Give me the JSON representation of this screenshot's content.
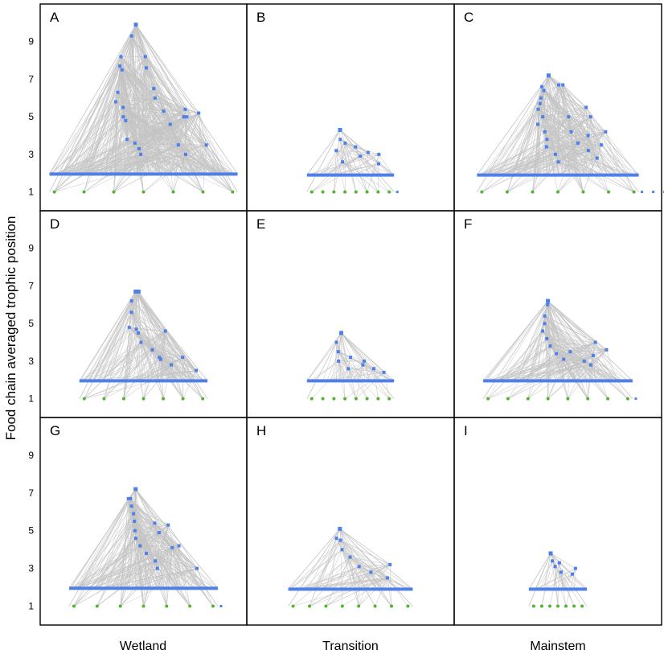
{
  "chart_data": {
    "type": "network",
    "ylabel": "Food chain averaged trophic position",
    "y_ticks": [
      "1",
      "3",
      "5",
      "7",
      "9"
    ],
    "ylim": [
      0,
      11
    ],
    "columns": [
      "Wetland",
      "Transition",
      "Mainstem"
    ],
    "colors": {
      "consumer": "#4f80e8",
      "basal": "#52b52b",
      "edge": "#c4c4c4",
      "border": "#000000"
    },
    "panels": [
      {
        "id": "A",
        "column": "Wetland",
        "row": 1,
        "max_tp": 9.9,
        "span": 0.91,
        "baseline_tp": 1.95,
        "n_basal": 7,
        "edge_count": 700,
        "extra_nodes": 0,
        "consumer_tps": [
          9.9,
          9.3,
          8.2,
          7.7,
          7.5,
          6.3,
          5.8,
          5.5,
          5.0,
          4.8,
          3.8,
          3.6,
          3.3,
          3.0,
          8.2,
          7.6,
          6.5,
          6.0,
          5.3,
          4.6,
          3.5,
          3.0,
          5.0,
          5.4,
          5.0,
          3.5,
          5.2
        ]
      },
      {
        "id": "B",
        "column": "Transition",
        "row": 1,
        "max_tp": 4.3,
        "span": 0.42,
        "baseline_tp": 1.9,
        "n_basal": 8,
        "edge_count": 90,
        "extra_nodes": 1,
        "consumer_tps": [
          4.3,
          3.8,
          3.2,
          2.6,
          3.6,
          3.4,
          2.9,
          3.1,
          2.5,
          3.0
        ]
      },
      {
        "id": "C",
        "column": "Mainstem",
        "row": 1,
        "max_tp": 7.2,
        "span": 0.78,
        "baseline_tp": 1.9,
        "n_basal": 7,
        "edge_count": 450,
        "extra_nodes": 4,
        "consumer_tps": [
          7.2,
          6.6,
          6.4,
          6.0,
          5.7,
          5.4,
          5.0,
          4.6,
          4.2,
          3.8,
          3.4,
          3.0,
          2.6,
          6.7,
          6.7,
          5.0,
          4.2,
          3.6,
          3.2,
          2.8,
          4.0,
          3.5,
          5.5,
          5.0,
          4.2
        ]
      },
      {
        "id": "D",
        "column": "Wetland",
        "row": 2,
        "max_tp": 6.7,
        "span": 0.62,
        "baseline_tp": 1.95,
        "n_basal": 7,
        "edge_count": 320,
        "extra_nodes": 0,
        "consumer_tps": [
          6.7,
          6.7,
          6.2,
          5.6,
          4.8,
          4.7,
          4.5,
          4.0,
          3.6,
          3.2,
          3.1,
          2.8,
          4.6,
          3.2,
          2.5
        ]
      },
      {
        "id": "E",
        "column": "Transition",
        "row": 2,
        "max_tp": 4.5,
        "span": 0.42,
        "baseline_tp": 1.95,
        "n_basal": 8,
        "edge_count": 100,
        "extra_nodes": 0,
        "consumer_tps": [
          4.5,
          4.0,
          3.5,
          3.0,
          2.6,
          3.2,
          2.8,
          3.0,
          2.6,
          2.4
        ]
      },
      {
        "id": "F",
        "column": "Mainstem",
        "row": 2,
        "max_tp": 6.2,
        "span": 0.72,
        "baseline_tp": 1.95,
        "n_basal": 8,
        "edge_count": 330,
        "extra_nodes": 1,
        "consumer_tps": [
          6.2,
          6.0,
          5.4,
          5.0,
          4.6,
          4.2,
          3.8,
          3.4,
          3.1,
          3.5,
          3.0,
          2.8,
          3.3,
          4.0,
          3.6
        ]
      },
      {
        "id": "G",
        "column": "Wetland",
        "row": 3,
        "max_tp": 7.2,
        "span": 0.72,
        "baseline_tp": 1.95,
        "n_basal": 7,
        "edge_count": 420,
        "extra_nodes": 1,
        "consumer_tps": [
          7.2,
          6.7,
          6.7,
          6.3,
          5.9,
          5.5,
          5.0,
          4.6,
          4.2,
          3.8,
          3.4,
          3.0,
          5.4,
          4.9,
          4.1,
          5.3,
          4.2,
          3.0
        ]
      },
      {
        "id": "H",
        "column": "Transition",
        "row": 3,
        "max_tp": 5.1,
        "span": 0.6,
        "baseline_tp": 1.9,
        "n_basal": 8,
        "edge_count": 140,
        "extra_nodes": 0,
        "consumer_tps": [
          5.1,
          4.6,
          4.5,
          4.0,
          3.6,
          3.1,
          2.8,
          2.5,
          3.2
        ]
      },
      {
        "id": "I",
        "column": "Mainstem",
        "row": 3,
        "max_tp": 3.8,
        "span": 0.28,
        "baseline_tp": 1.9,
        "n_basal": 7,
        "edge_count": 50,
        "extra_nodes": 0,
        "consumer_tps": [
          3.8,
          3.4,
          3.1,
          2.8,
          3.3,
          2.7,
          3.0
        ]
      }
    ]
  }
}
